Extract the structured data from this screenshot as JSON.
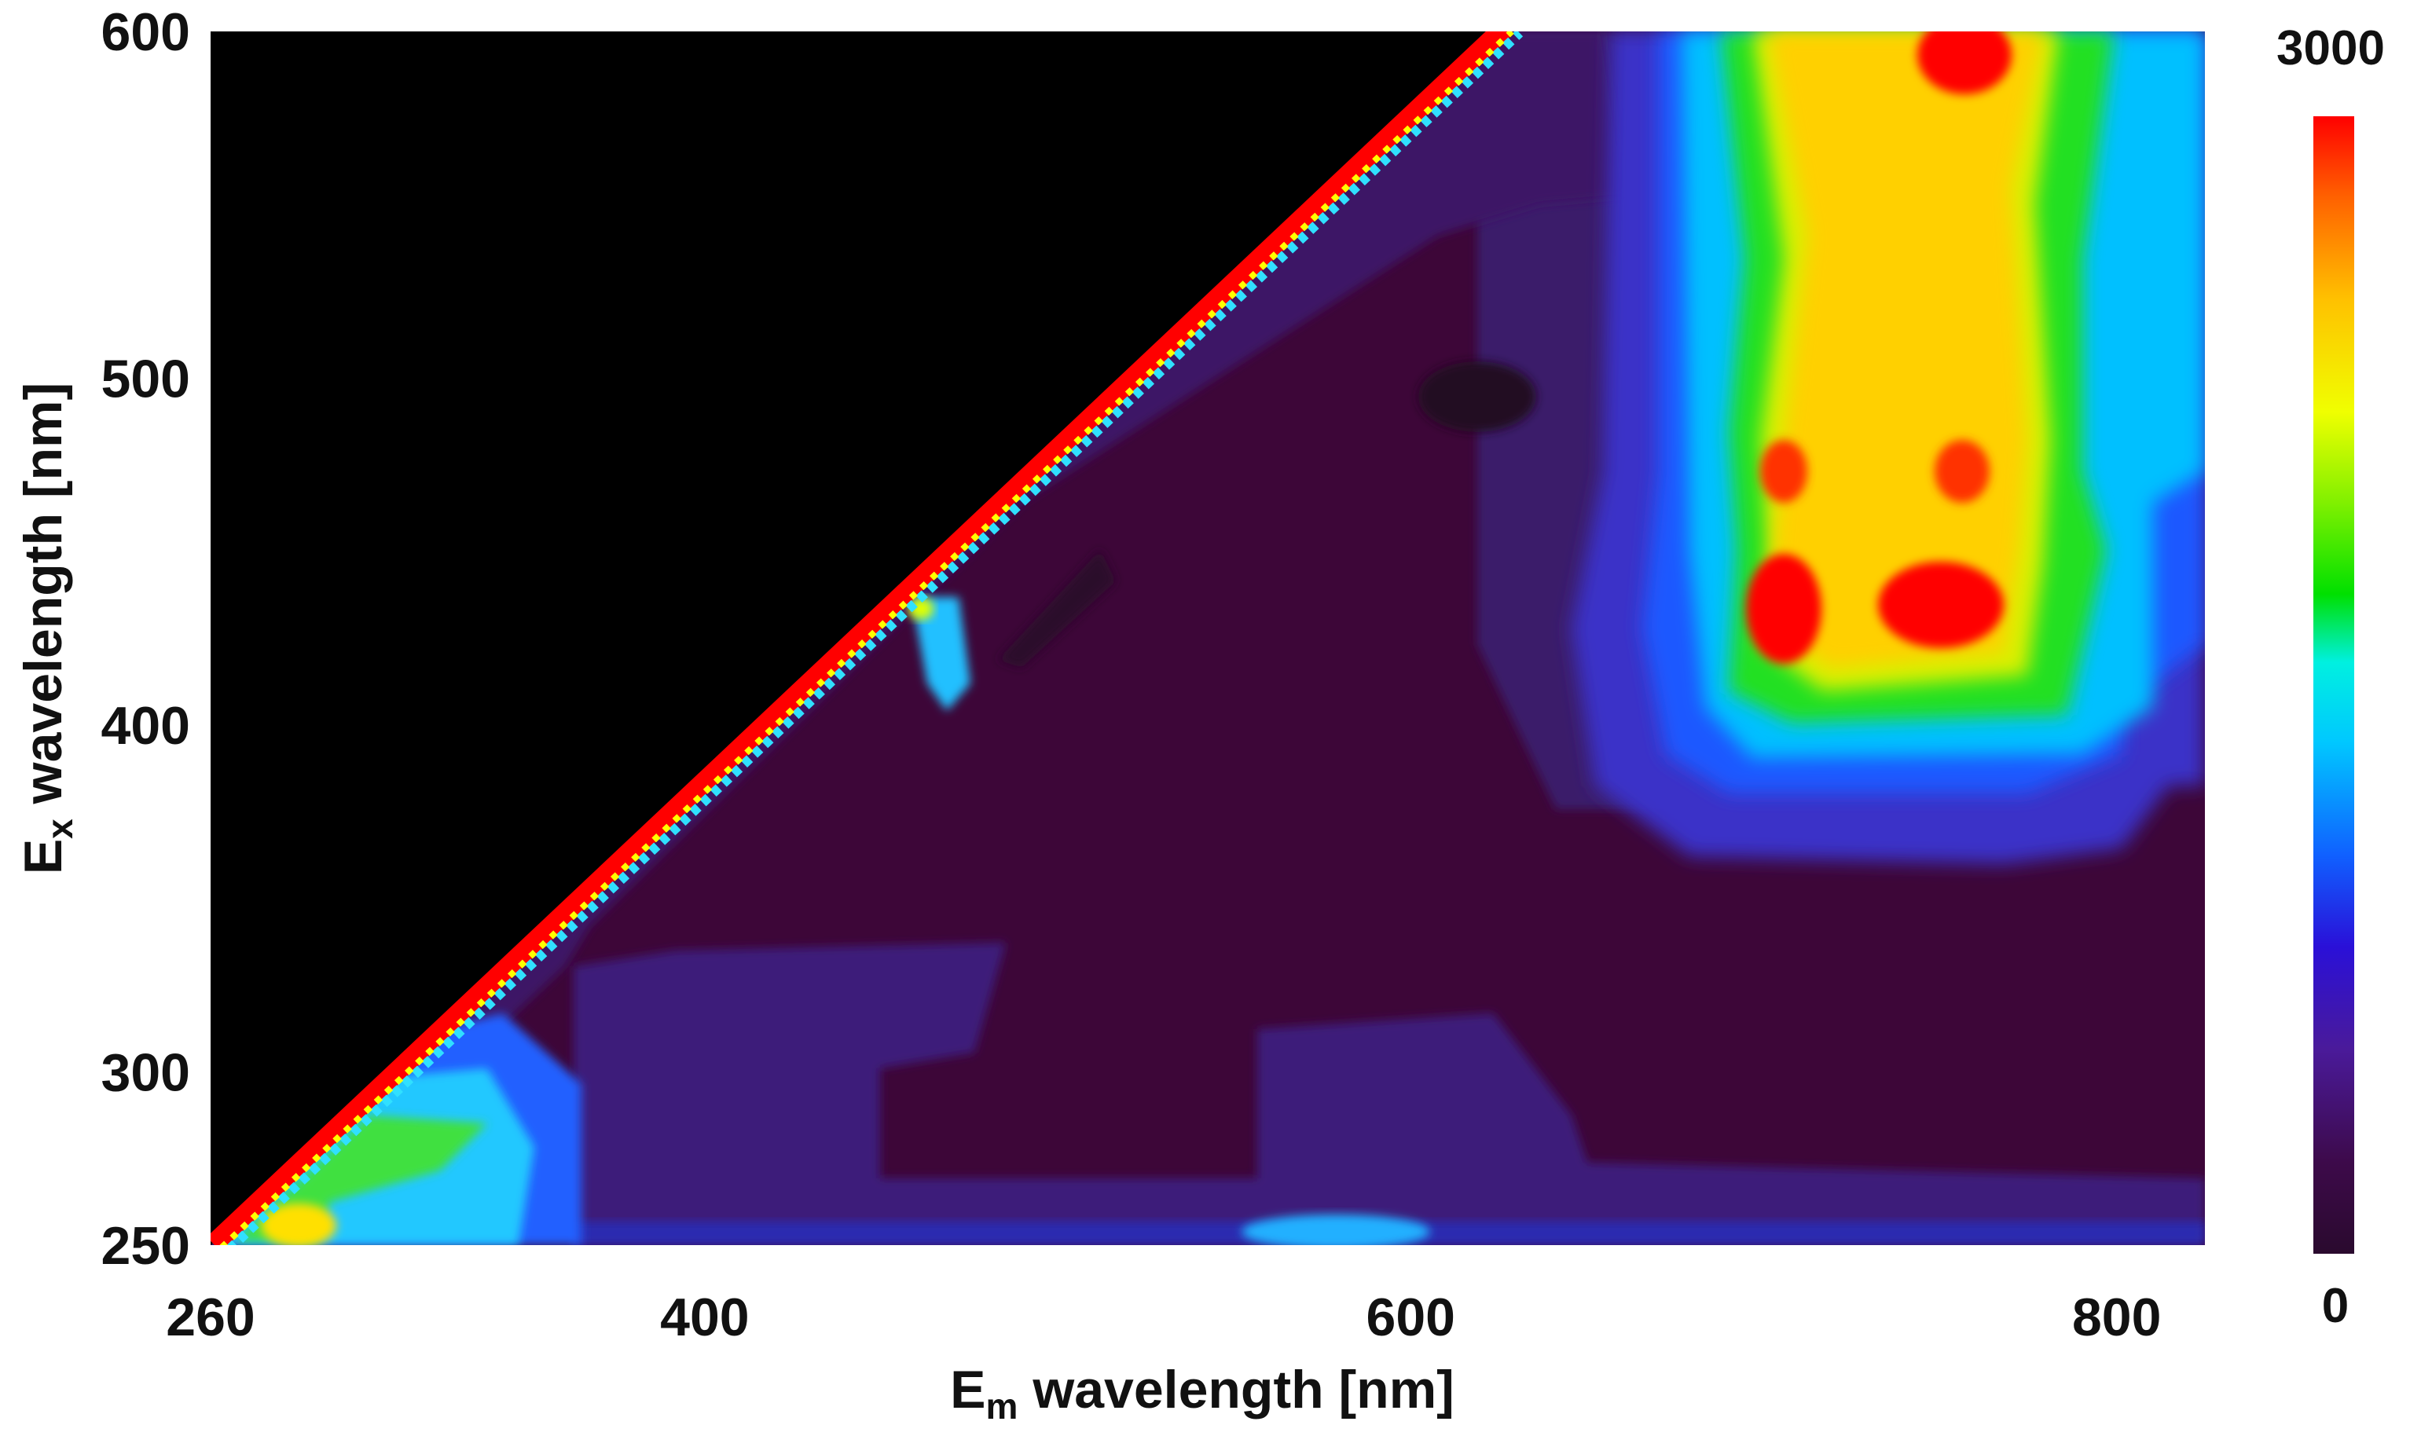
{
  "chart_data": {
    "type": "heatmap",
    "title": "",
    "xlabel": "Eₘ wavelength [nm]",
    "xlabel_main": "E",
    "xlabel_sub": "m",
    "xlabel_rest": " wavelength [nm]",
    "ylabel": "Eₓ wavelength [nm]",
    "ylabel_main": "E",
    "ylabel_sub": "x",
    "ylabel_rest": " wavelength [nm]",
    "xlim": [
      260,
      825
    ],
    "ylim": [
      250,
      600
    ],
    "x_ticks": [
      260,
      400,
      600,
      800
    ],
    "x_tick_labels": [
      "260",
      "400",
      "600",
      "800"
    ],
    "y_ticks": [
      250,
      300,
      400,
      500,
      600
    ],
    "y_tick_labels": [
      "250",
      "300",
      "400",
      "500",
      "600"
    ],
    "colorbar": {
      "min": 0,
      "max": 3000,
      "min_label": "0",
      "max_label": "3000",
      "colormap": "jet-like (dark purple → blue → cyan → green → yellow → red)"
    },
    "masked_region": "black area where emission wavelength < excitation wavelength (upper-left triangle)",
    "features": [
      {
        "description": "Rayleigh scatter diagonal line (Em ≈ Ex)",
        "intensity": 3000
      },
      {
        "description": "Main emission band",
        "em_range": [
          700,
          800
        ],
        "ex_range": [
          375,
          600
        ],
        "peak_intensity": 3000
      },
      {
        "description": "Peak",
        "em": 710,
        "ex": 425,
        "intensity": 3000
      },
      {
        "description": "Peak",
        "em": 758,
        "ex": 425,
        "intensity": 3000
      },
      {
        "description": "Peak",
        "em": 710,
        "ex": 465,
        "intensity": 2900
      },
      {
        "description": "Peak",
        "em": 758,
        "ex": 465,
        "intensity": 2900
      },
      {
        "description": "Peak",
        "em": 760,
        "ex": 595,
        "intensity": 3000
      },
      {
        "description": "Short-wavelength emission near excitation edge",
        "em_range": [
          265,
          370
        ],
        "ex_range": [
          250,
          295
        ],
        "peak_intensity": 2500
      },
      {
        "description": "Weak emission spot",
        "em": 470,
        "ex": 415,
        "intensity": 2000
      },
      {
        "description": "Weak emission band at bottom",
        "em_range": [
          560,
          640
        ],
        "ex_range": [
          250,
          255
        ],
        "intensity": 1700
      }
    ],
    "grid": false,
    "legend": "colorbar-right"
  }
}
